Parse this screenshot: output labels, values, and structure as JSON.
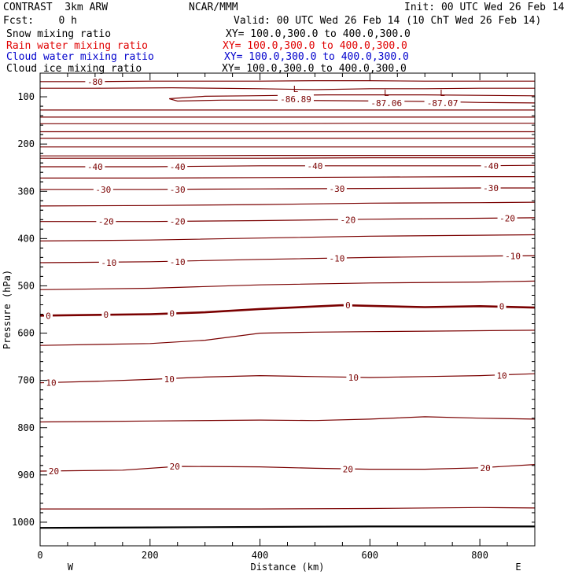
{
  "header": {
    "project": "CONTRAST  3km ARW",
    "center": "NCAR/MMM",
    "init": "Init: 00 UTC Wed 26 Feb 14",
    "fcst": "Fcst:    0 h",
    "valid": "Valid: 00 UTC Wed 26 Feb 14 (10 ChT Wed 26 Feb 14)"
  },
  "legend": [
    {
      "label": "Snow mixing ratio",
      "xy": "XY= 100.0,300.0 to 400.0,300.0",
      "color": "#000000"
    },
    {
      "label": "Rain water mixing ratio",
      "xy": "XY= 100.0,300.0 to 400.0,300.0",
      "color": "#e00000"
    },
    {
      "label": "Cloud water mixing ratio",
      "xy": "XY= 100.0,300.0 to 400.0,300.0",
      "color": "#0000cc"
    },
    {
      "label": "Cloud ice mixing ratio",
      "xy": "XY= 100.0,300.0 to 400.0,300.0",
      "color": "#000000"
    }
  ],
  "chart_data": {
    "type": "line",
    "xlabel": "Distance (km)",
    "ylabel": "Pressure (hPa)",
    "xlim": [
      0,
      900
    ],
    "ylim": [
      1050,
      50
    ],
    "x_ticks": [
      0,
      200,
      400,
      600,
      800
    ],
    "y_ticks": [
      100,
      200,
      300,
      400,
      500,
      600,
      700,
      800,
      900,
      1000
    ],
    "x_end_labels": {
      "left": "W",
      "right": "E"
    },
    "contour_color": "#7a0000",
    "contour_interval": 5,
    "contours": [
      {
        "value": -80,
        "label": "-80",
        "points": [
          [
            0,
            68
          ],
          [
            100,
            68
          ],
          [
            200,
            67
          ],
          [
            300,
            67
          ],
          [
            400,
            67
          ],
          [
            500,
            66
          ],
          [
            600,
            66
          ],
          [
            700,
            67
          ],
          [
            800,
            67
          ],
          [
            900,
            67
          ]
        ]
      },
      {
        "value": -85,
        "points": [
          [
            0,
            82
          ],
          [
            100,
            82
          ],
          [
            240,
            81
          ],
          [
            400,
            83
          ],
          [
            500,
            85
          ],
          [
            600,
            83
          ],
          [
            700,
            83
          ],
          [
            800,
            82
          ],
          [
            900,
            82
          ]
        ]
      },
      {
        "value": -85,
        "closed_left": true,
        "points": [
          [
            900,
            98
          ],
          [
            700,
            96
          ],
          [
            600,
            96
          ],
          [
            520,
            96
          ],
          [
            450,
            97
          ],
          [
            380,
            98
          ],
          [
            300,
            99
          ],
          [
            235,
            104
          ],
          [
            250,
            109
          ],
          [
            330,
            107
          ],
          [
            420,
            107
          ],
          [
            520,
            108
          ],
          [
            620,
            109
          ],
          [
            720,
            110
          ],
          [
            800,
            112
          ],
          [
            900,
            113
          ]
        ]
      },
      {
        "value": -80,
        "points": [
          [
            0,
            128
          ],
          [
            200,
            128
          ],
          [
            400,
            128
          ],
          [
            600,
            128
          ],
          [
            800,
            128
          ],
          [
            900,
            128
          ]
        ]
      },
      {
        "value": -75,
        "points": [
          [
            0,
            143
          ],
          [
            200,
            143
          ],
          [
            400,
            143
          ],
          [
            600,
            143
          ],
          [
            800,
            143
          ],
          [
            900,
            143
          ]
        ]
      },
      {
        "value": -70,
        "points": [
          [
            0,
            157
          ],
          [
            200,
            157
          ],
          [
            400,
            157
          ],
          [
            600,
            156
          ],
          [
            800,
            156
          ],
          [
            900,
            156
          ]
        ]
      },
      {
        "value": -65,
        "points": [
          [
            0,
            174
          ],
          [
            200,
            174
          ],
          [
            400,
            174
          ],
          [
            600,
            174
          ],
          [
            800,
            174
          ],
          [
            900,
            174
          ]
        ]
      },
      {
        "value": -60,
        "points": [
          [
            0,
            188
          ],
          [
            200,
            188
          ],
          [
            400,
            188
          ],
          [
            600,
            188
          ],
          [
            800,
            188
          ],
          [
            900,
            188
          ]
        ]
      },
      {
        "value": -55,
        "points": [
          [
            0,
            206
          ],
          [
            200,
            206
          ],
          [
            400,
            206
          ],
          [
            600,
            206
          ],
          [
            800,
            206
          ],
          [
            900,
            206
          ]
        ]
      },
      {
        "value": -50,
        "points": [
          [
            0,
            225
          ],
          [
            200,
            225
          ],
          [
            400,
            224
          ],
          [
            600,
            224
          ],
          [
            800,
            224
          ],
          [
            900,
            224
          ]
        ]
      },
      {
        "value": -45,
        "points": [
          [
            0,
            230
          ],
          [
            200,
            230
          ],
          [
            400,
            230
          ],
          [
            600,
            229
          ],
          [
            800,
            229
          ],
          [
            900,
            229
          ]
        ]
      },
      {
        "value": -40,
        "label": "-40",
        "points": [
          [
            0,
            248
          ],
          [
            200,
            248
          ],
          [
            400,
            246
          ],
          [
            600,
            246
          ],
          [
            800,
            246
          ],
          [
            900,
            245
          ]
        ]
      },
      {
        "value": -35,
        "points": [
          [
            0,
            272
          ],
          [
            200,
            272
          ],
          [
            400,
            271
          ],
          [
            600,
            270
          ],
          [
            800,
            269
          ],
          [
            900,
            269
          ]
        ]
      },
      {
        "value": -30,
        "label": "-30",
        "points": [
          [
            0,
            296
          ],
          [
            200,
            296
          ],
          [
            400,
            295
          ],
          [
            600,
            294
          ],
          [
            800,
            293
          ],
          [
            900,
            293
          ]
        ]
      },
      {
        "value": -25,
        "points": [
          [
            0,
            331
          ],
          [
            200,
            330
          ],
          [
            400,
            328
          ],
          [
            600,
            325
          ],
          [
            800,
            324
          ],
          [
            900,
            323
          ]
        ]
      },
      {
        "value": -20,
        "label": "-20",
        "points": [
          [
            0,
            364
          ],
          [
            200,
            364
          ],
          [
            400,
            362
          ],
          [
            600,
            359
          ],
          [
            800,
            357
          ],
          [
            900,
            356
          ]
        ]
      },
      {
        "value": -15,
        "points": [
          [
            0,
            405
          ],
          [
            200,
            403
          ],
          [
            400,
            399
          ],
          [
            600,
            395
          ],
          [
            800,
            393
          ],
          [
            900,
            392
          ]
        ]
      },
      {
        "value": -10,
        "label": "-10",
        "points": [
          [
            0,
            451
          ],
          [
            200,
            449
          ],
          [
            400,
            444
          ],
          [
            600,
            440
          ],
          [
            800,
            437
          ],
          [
            900,
            436
          ]
        ]
      },
      {
        "value": -5,
        "points": [
          [
            0,
            508
          ],
          [
            200,
            505
          ],
          [
            400,
            498
          ],
          [
            600,
            494
          ],
          [
            800,
            492
          ],
          [
            900,
            490
          ]
        ]
      },
      {
        "value": 0,
        "label": "0",
        "bold": true,
        "points": [
          [
            0,
            563
          ],
          [
            200,
            560
          ],
          [
            300,
            556
          ],
          [
            400,
            549
          ],
          [
            550,
            541
          ],
          [
            700,
            545
          ],
          [
            800,
            543
          ],
          [
            900,
            546
          ]
        ]
      },
      {
        "value": 5,
        "points": [
          [
            0,
            626
          ],
          [
            200,
            622
          ],
          [
            300,
            615
          ],
          [
            400,
            600
          ],
          [
            500,
            598
          ],
          [
            600,
            597
          ],
          [
            700,
            596
          ],
          [
            800,
            595
          ],
          [
            900,
            594
          ]
        ]
      },
      {
        "value": 10,
        "label": "10",
        "points": [
          [
            0,
            705
          ],
          [
            100,
            702
          ],
          [
            200,
            698
          ],
          [
            300,
            693
          ],
          [
            400,
            690
          ],
          [
            500,
            692
          ],
          [
            600,
            694
          ],
          [
            700,
            692
          ],
          [
            800,
            690
          ],
          [
            900,
            686
          ]
        ]
      },
      {
        "value": 15,
        "points": [
          [
            0,
            788
          ],
          [
            200,
            786
          ],
          [
            400,
            784
          ],
          [
            500,
            785
          ],
          [
            600,
            782
          ],
          [
            700,
            777
          ],
          [
            800,
            780
          ],
          [
            900,
            782
          ]
        ]
      },
      {
        "value": 20,
        "label": "20",
        "points": [
          [
            0,
            892
          ],
          [
            150,
            890
          ],
          [
            250,
            882
          ],
          [
            400,
            883
          ],
          [
            500,
            886
          ],
          [
            600,
            888
          ],
          [
            700,
            888
          ],
          [
            800,
            885
          ],
          [
            900,
            878
          ]
        ]
      },
      {
        "value": 25,
        "points": [
          [
            0,
            972
          ],
          [
            200,
            972
          ],
          [
            400,
            972
          ],
          [
            600,
            971
          ],
          [
            800,
            969
          ],
          [
            900,
            970
          ]
        ]
      }
    ],
    "contour_labels": [
      {
        "text": "-80",
        "x": 100,
        "y": 68
      },
      {
        "text": "-40",
        "x": 100,
        "y": 248
      },
      {
        "text": "-40",
        "x": 250,
        "y": 248
      },
      {
        "text": "-40",
        "x": 500,
        "y": 246
      },
      {
        "text": "-40",
        "x": 820,
        "y": 246
      },
      {
        "text": "-30",
        "x": 115,
        "y": 296
      },
      {
        "text": "-30",
        "x": 250,
        "y": 296
      },
      {
        "text": "-30",
        "x": 540,
        "y": 295
      },
      {
        "text": "-30",
        "x": 820,
        "y": 293
      },
      {
        "text": "-20",
        "x": 120,
        "y": 364
      },
      {
        "text": "-20",
        "x": 250,
        "y": 364
      },
      {
        "text": "-20",
        "x": 560,
        "y": 360
      },
      {
        "text": "-20",
        "x": 850,
        "y": 357
      },
      {
        "text": "-10",
        "x": 125,
        "y": 451
      },
      {
        "text": "-10",
        "x": 250,
        "y": 449
      },
      {
        "text": "-10",
        "x": 540,
        "y": 442
      },
      {
        "text": "-10",
        "x": 860,
        "y": 437
      },
      {
        "text": "0",
        "x": 15,
        "y": 563
      },
      {
        "text": "0",
        "x": 120,
        "y": 561
      },
      {
        "text": "0",
        "x": 240,
        "y": 558
      },
      {
        "text": "0",
        "x": 560,
        "y": 541
      },
      {
        "text": "0",
        "x": 840,
        "y": 543
      },
      {
        "text": "10",
        "x": 20,
        "y": 705
      },
      {
        "text": "10",
        "x": 235,
        "y": 697
      },
      {
        "text": "10",
        "x": 570,
        "y": 694
      },
      {
        "text": "10",
        "x": 840,
        "y": 690
      },
      {
        "text": "20",
        "x": 25,
        "y": 892
      },
      {
        "text": "20",
        "x": 245,
        "y": 882
      },
      {
        "text": "20",
        "x": 560,
        "y": 888
      },
      {
        "text": "20",
        "x": 810,
        "y": 885
      }
    ],
    "extrema": [
      {
        "symbol": "L",
        "value": "-86.89",
        "x": 465,
        "y": 90
      },
      {
        "symbol": "L",
        "value": "-87.06",
        "x": 630,
        "y": 98
      },
      {
        "symbol": "L",
        "value": "-87.07",
        "x": 732,
        "y": 98
      }
    ],
    "ground": {
      "value": 1010,
      "points": [
        [
          0,
          1012
        ],
        [
          200,
          1011
        ],
        [
          400,
          1010
        ],
        [
          600,
          1009
        ],
        [
          800,
          1009
        ],
        [
          900,
          1009
        ]
      ]
    }
  }
}
